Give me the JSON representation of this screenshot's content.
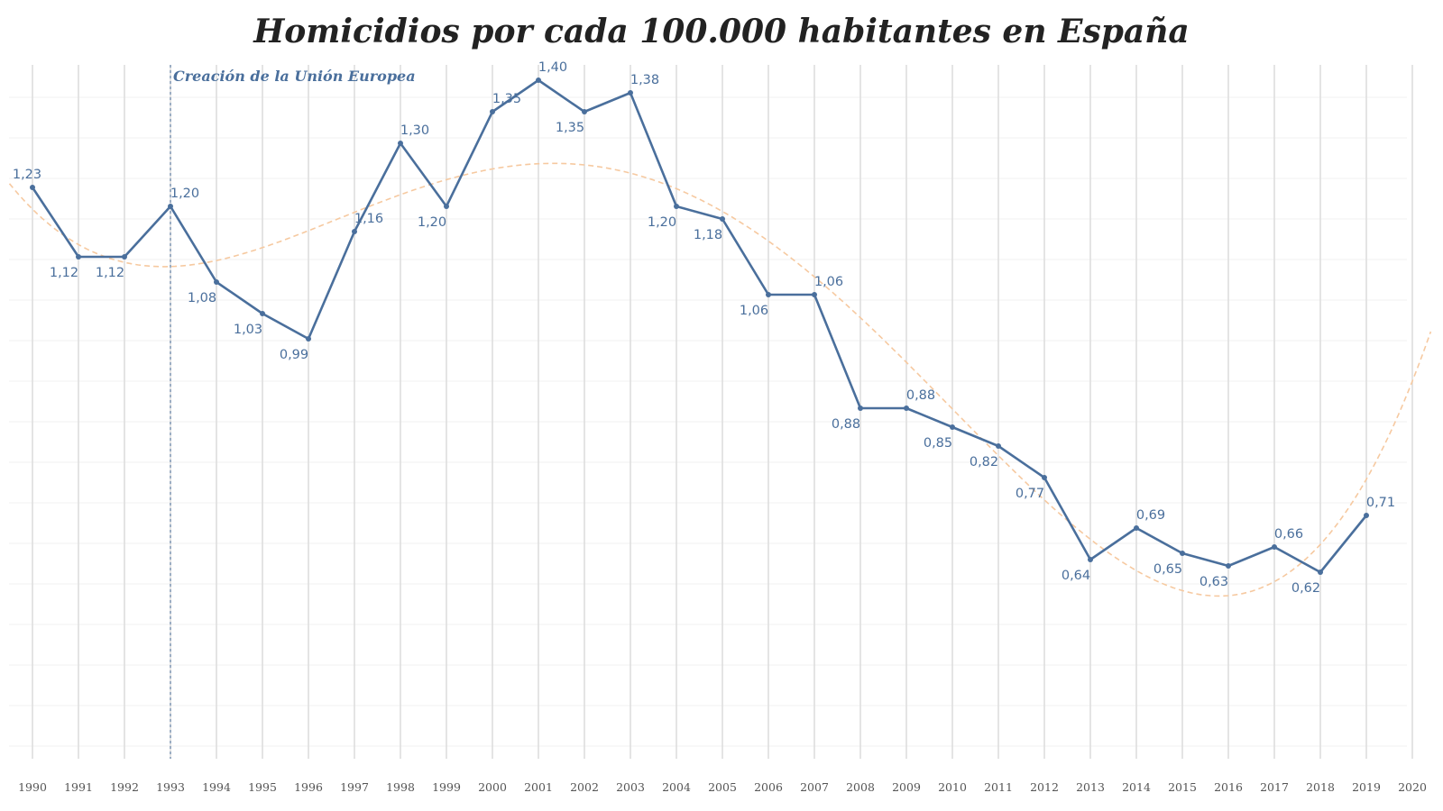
{
  "chart_data": {
    "type": "line",
    "title": "Homicidios por cada 100.000 habitantes en España",
    "categories": [
      "1990",
      "1991",
      "1992",
      "1993",
      "1994",
      "1995",
      "1996",
      "1997",
      "1998",
      "1999",
      "2000",
      "2001",
      "2002",
      "2003",
      "2004",
      "2005",
      "2006",
      "2007",
      "2008",
      "2009",
      "2010",
      "2011",
      "2012",
      "2013",
      "2014",
      "2015",
      "2016",
      "2017",
      "2018",
      "2019",
      "2020"
    ],
    "series": [
      {
        "values": [
          1.23,
          1.12,
          1.12,
          1.2,
          1.08,
          1.03,
          0.99,
          1.16,
          1.3,
          1.2,
          1.35,
          1.4,
          1.35,
          1.38,
          1.2,
          1.18,
          1.06,
          1.06,
          0.88,
          0.88,
          0.85,
          0.82,
          0.77,
          0.64,
          0.69,
          0.65,
          0.63,
          0.66,
          0.62,
          0.71,
          null
        ],
        "labels": [
          "1,23",
          "1,12",
          "1,12",
          "1,20",
          "1,08",
          "1,03",
          "0,99",
          "1,16",
          "1,30",
          "1,20",
          "1,35",
          "1,40",
          "1,35",
          "1,38",
          "1,20",
          "1,18",
          "1,06",
          "1,06",
          "0,88",
          "0,88",
          "0,85",
          "0,82",
          "0,77",
          "0,64",
          "0,69",
          "0,65",
          "0,63",
          "0,66",
          "0,62",
          "0,71",
          null
        ],
        "color": "#4a6f9c"
      }
    ],
    "trendline": {
      "style": "dashed",
      "color": "#f6c9a0"
    },
    "annotation": {
      "text": "Creación de la Unión Europea",
      "at": "1993",
      "color": "#4a6f9c"
    },
    "ylim": [
      0.6,
      1.45
    ],
    "grid": true,
    "xlabel": "",
    "ylabel": ""
  }
}
